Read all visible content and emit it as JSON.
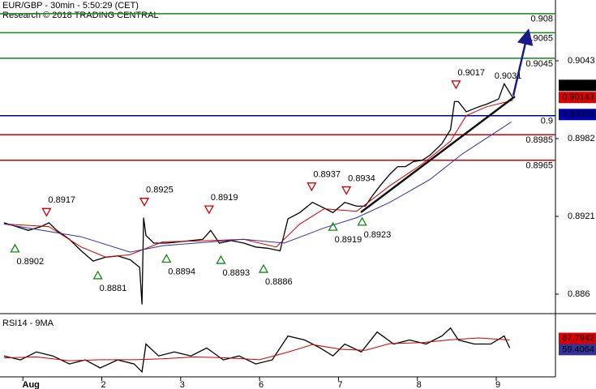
{
  "chart_data": [
    {
      "type": "line",
      "title": "EUR/GBP - 30min - 5:50:29 (CET)",
      "subtitle": "Research © 2018 TRADING CENTRAL",
      "xlim": [
        0.71,
        7.75
      ],
      "ylim": [
        0.8846,
        0.90907
      ],
      "yticks": [
        0.9043,
        0.8982,
        0.8921,
        0.886
      ],
      "series": [
        {
          "color": "#000000",
          "x": [
            0.76,
            0.92,
            1.07,
            1.23,
            1.33,
            1.43,
            1.59,
            1.74,
            1.89,
            2.05,
            2.2,
            2.36,
            2.48,
            2.51,
            2.53,
            2.56,
            2.66,
            2.82,
            2.97,
            3.13,
            3.28,
            3.38,
            3.49,
            3.64,
            3.8,
            3.95,
            4.1,
            4.26,
            4.36,
            4.51,
            4.67,
            4.77,
            4.93,
            5.08,
            5.23,
            5.34,
            5.44,
            5.54,
            5.65,
            5.75,
            5.85,
            5.95,
            6.06,
            6.16,
            6.31,
            6.42,
            6.47,
            6.52,
            6.62,
            6.78,
            6.88,
            7.03,
            7.1,
            7.21
          ],
          "values": [
            0.8916,
            0.8913,
            0.891,
            0.8913,
            0.8916,
            0.891,
            0.8903,
            0.8894,
            0.8886,
            0.8889,
            0.889,
            0.8887,
            0.8881,
            0.8852,
            0.892,
            0.8906,
            0.89,
            0.89,
            0.8901,
            0.8902,
            0.8903,
            0.891,
            0.89,
            0.8902,
            0.89,
            0.8897,
            0.8896,
            0.8894,
            0.8919,
            0.8924,
            0.8932,
            0.8929,
            0.8924,
            0.8932,
            0.8929,
            0.8929,
            0.8938,
            0.8946,
            0.8954,
            0.896,
            0.896,
            0.8964,
            0.8965,
            0.8969,
            0.8978,
            0.8989,
            0.9011,
            0.9011,
            0.9003,
            0.9007,
            0.9009,
            0.9013,
            0.9025,
            0.9014
          ]
        },
        {
          "color": "#cc0000",
          "x": [
            0.76,
            1.33,
            1.74,
            2.05,
            2.36,
            2.77,
            3.38,
            3.8,
            4.21,
            4.51,
            4.82,
            5.23,
            5.65,
            6.06,
            6.42,
            6.62,
            6.88,
            7.21
          ],
          "values": [
            0.8915,
            0.8913,
            0.8897,
            0.8889,
            0.8891,
            0.8901,
            0.8902,
            0.8903,
            0.8897,
            0.8915,
            0.8927,
            0.8925,
            0.8945,
            0.8962,
            0.898,
            0.9,
            0.9007,
            0.9012
          ]
        },
        {
          "color": "#33339a",
          "x": [
            0.76,
            1.74,
            2.36,
            2.77,
            3.8,
            4.31,
            4.82,
            5.23,
            5.65,
            6.16,
            6.57,
            7.19
          ],
          "values": [
            0.8915,
            0.8905,
            0.8893,
            0.8898,
            0.8903,
            0.89,
            0.8912,
            0.892,
            0.8932,
            0.895,
            0.897,
            0.8995
          ]
        }
      ],
      "levels": [
        {
          "value": 0.908,
          "color": "#118811"
        },
        {
          "value": 0.9065,
          "color": "#118811"
        },
        {
          "value": 0.9045,
          "color": "#118811"
        },
        {
          "value": 0.9,
          "color": "#00008b"
        },
        {
          "value": 0.8985,
          "color": "#cc0000"
        },
        {
          "value": 0.8965,
          "color": "#cc0000"
        }
      ],
      "annotations": [
        {
          "label": "0.8917",
          "value": 0.8917,
          "x": 1.3,
          "kind": "high"
        },
        {
          "label": "0.8925",
          "value": 0.8925,
          "x": 2.54,
          "kind": "high"
        },
        {
          "label": "0.8919",
          "value": 0.8919,
          "x": 3.36,
          "kind": "high"
        },
        {
          "label": "0.8937",
          "value": 0.8937,
          "x": 4.66,
          "kind": "high"
        },
        {
          "label": "0.8934",
          "value": 0.8934,
          "x": 5.1,
          "kind": "high"
        },
        {
          "label": "0.9017",
          "value": 0.9017,
          "x": 6.49,
          "kind": "high"
        },
        {
          "label": "0.9031",
          "value": 0.9031,
          "x": 7.17,
          "kind": "plain"
        },
        {
          "label": "0.8902",
          "value": 0.8902,
          "x": 0.9,
          "kind": "low"
        },
        {
          "label": "0.8881",
          "value": 0.8881,
          "x": 1.95,
          "kind": "low"
        },
        {
          "label": "0.8894",
          "value": 0.8894,
          "x": 2.82,
          "kind": "low"
        },
        {
          "label": "0.8893",
          "value": 0.8893,
          "x": 3.51,
          "kind": "low"
        },
        {
          "label": "0.8886",
          "value": 0.8886,
          "x": 4.05,
          "kind": "low"
        },
        {
          "label": "0.8919",
          "value": 0.8919,
          "x": 4.93,
          "kind": "low"
        },
        {
          "label": "0.8923",
          "value": 0.8923,
          "x": 5.3,
          "kind": "low"
        }
      ],
      "price_boxes": [
        {
          "value": 0.90161,
          "color": "#000000"
        },
        {
          "value": 0.90143,
          "color": "#dd0000"
        },
        {
          "value": 0.90009,
          "color": "#0000aa"
        }
      ]
    },
    {
      "type": "line",
      "title": "RSI14 - 9MA",
      "xlim": [
        0.71,
        7.75
      ],
      "ylim": [
        29,
        93
      ],
      "xticks": [
        {
          "value": 1,
          "label": "Aug"
        },
        2,
        3,
        {
          "value": 4,
          "label": "6"
        },
        {
          "value": 5,
          "label": "7"
        },
        {
          "value": 6,
          "label": "8"
        },
        {
          "value": 7,
          "label": "9"
        }
      ],
      "series": [
        {
          "color": "#000000",
          "x": [
            0.76,
            0.97,
            1.17,
            1.38,
            1.59,
            1.79,
            1.98,
            2.2,
            2.41,
            2.51,
            2.56,
            2.72,
            2.92,
            3.13,
            3.33,
            3.54,
            3.74,
            3.95,
            4.16,
            4.36,
            4.57,
            4.77,
            4.93,
            5.08,
            5.29,
            5.49,
            5.7,
            5.9,
            6.11,
            6.31,
            6.42,
            6.52,
            6.72,
            6.93,
            7.1,
            7.17
          ],
          "values": [
            51,
            46.8,
            55.2,
            51,
            42.6,
            46.8,
            38.4,
            46.8,
            42.6,
            34.2,
            63.6,
            51,
            55.2,
            51,
            59.4,
            46.8,
            51,
            42.6,
            46.8,
            72,
            67.8,
            59.4,
            51,
            63.6,
            55.2,
            76.2,
            63.6,
            67.8,
            63.6,
            72,
            80.4,
            67.8,
            63.6,
            63.6,
            72,
            59.4064
          ]
        },
        {
          "color": "#cc0000",
          "x": [
            0.76,
            1.17,
            1.59,
            1.98,
            2.41,
            2.77,
            3.18,
            3.59,
            4,
            4.36,
            4.67,
            5.03,
            5.34,
            5.65,
            6.06,
            6.42,
            6.78,
            7.17
          ],
          "values": [
            49,
            50,
            46,
            47,
            47,
            48,
            50,
            49,
            47,
            55,
            63,
            58,
            57,
            64,
            65,
            68,
            70,
            67.7942
          ]
        }
      ],
      "value_boxes": [
        {
          "value": 67.7942,
          "color": "#dd0000"
        },
        {
          "value": 59.4064,
          "color": "#33339a"
        }
      ]
    }
  ]
}
